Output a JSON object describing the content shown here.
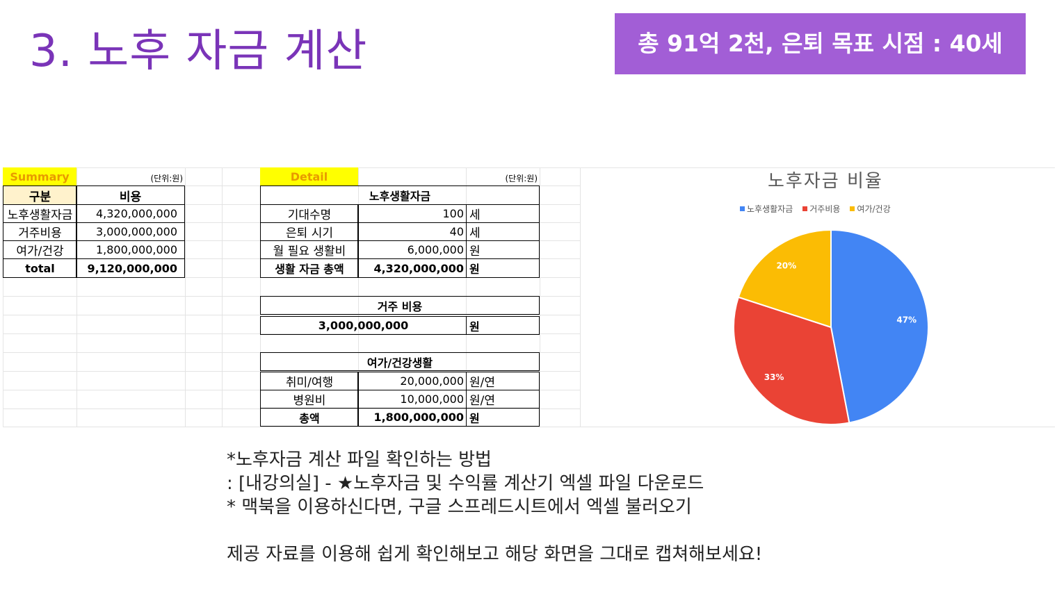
{
  "title": "3. 노후 자금 계산",
  "badge": "총 91억 2천, 은퇴 목표 시점   : 40세",
  "summary": {
    "header": "Summary",
    "unit": "(단위:원)",
    "col_category": "구분",
    "col_cost": "비용",
    "rows": [
      {
        "label": "노후생활자금",
        "value": "4,320,000,000"
      },
      {
        "label": "거주비용",
        "value": "3,000,000,000"
      },
      {
        "label": "여가/건강",
        "value": "1,800,000,000"
      }
    ],
    "total_label": "total",
    "total_value": "9,120,000,000"
  },
  "detail": {
    "header": "Detail",
    "unit": "(단위:원)",
    "living": {
      "title": "노후생활자금",
      "rows": [
        {
          "label": "기대수명",
          "value": "100",
          "unit": "세"
        },
        {
          "label": "은퇴 시기",
          "value": "40",
          "unit": "세"
        },
        {
          "label": "월 필요 생활비",
          "value": "6,000,000",
          "unit": "원"
        }
      ],
      "total": {
        "label": "생활 자금 총액",
        "value": "4,320,000,000",
        "unit": "원"
      }
    },
    "housing": {
      "title": "거주 비용",
      "value": "3,000,000,000",
      "unit": "원"
    },
    "leisure": {
      "title": "여가/건강생활",
      "rows": [
        {
          "label": "취미/여행",
          "value": "20,000,000",
          "unit": "원/연"
        },
        {
          "label": "병원비",
          "value": "10,000,000",
          "unit": "원/연"
        }
      ],
      "total": {
        "label": "총액",
        "value": "1,800,000,000",
        "unit": "원"
      }
    }
  },
  "chart_data": {
    "type": "pie",
    "title": "노후자금 비율",
    "categories": [
      "노후생활자금",
      "거주비용",
      "여가/건강"
    ],
    "values": [
      47,
      33,
      20
    ],
    "labels": [
      "47%",
      "33%",
      "20%"
    ],
    "colors": [
      "#4285f4",
      "#ea4335",
      "#fbbc04"
    ],
    "legend": "top"
  },
  "notes": {
    "line1": "*노후자금 계산 파일 확인하는 방법",
    "line2": ": [내강의실] - ★노후자금 및 수익률 계산기 엑셀 파일 다운로드",
    "line3": "* 맥북을 이용하신다면, 구글 스프레드시트에서 엑셀 불러오기",
    "line4": "제공 자료를 이용해 쉽게 확인해보고 해당 화면을 그대로 캡쳐해보세요!"
  }
}
